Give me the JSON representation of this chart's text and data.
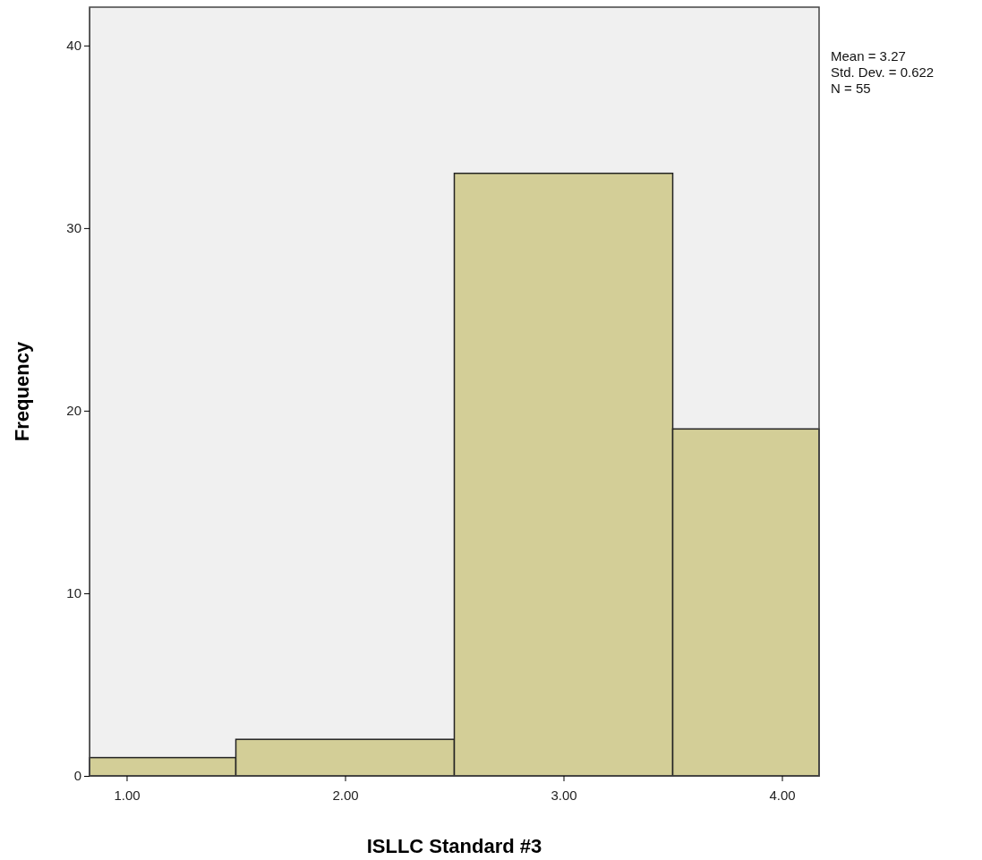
{
  "chart_data": {
    "type": "histogram",
    "xlabel": "ISLLC Standard #3",
    "ylabel": "Frequency",
    "bins": [
      0.83,
      1.5,
      2.5,
      3.5,
      4.17
    ],
    "values": [
      1,
      2,
      33,
      19
    ],
    "color": "#d3ce97",
    "xlim": [
      0.83,
      4.17
    ],
    "xticks": [
      {
        "value": 1,
        "label": "1.00"
      },
      {
        "value": 2,
        "label": "2.00"
      },
      {
        "value": 3,
        "label": "3.00"
      },
      {
        "value": 4,
        "label": "4.00"
      }
    ],
    "ylim": [
      0,
      42.1
    ],
    "yticks": [
      0,
      10,
      20,
      30,
      40
    ],
    "annotations": [
      "Mean = 3.27",
      "Std. Dev. = 0.622",
      "N = 55"
    ]
  }
}
